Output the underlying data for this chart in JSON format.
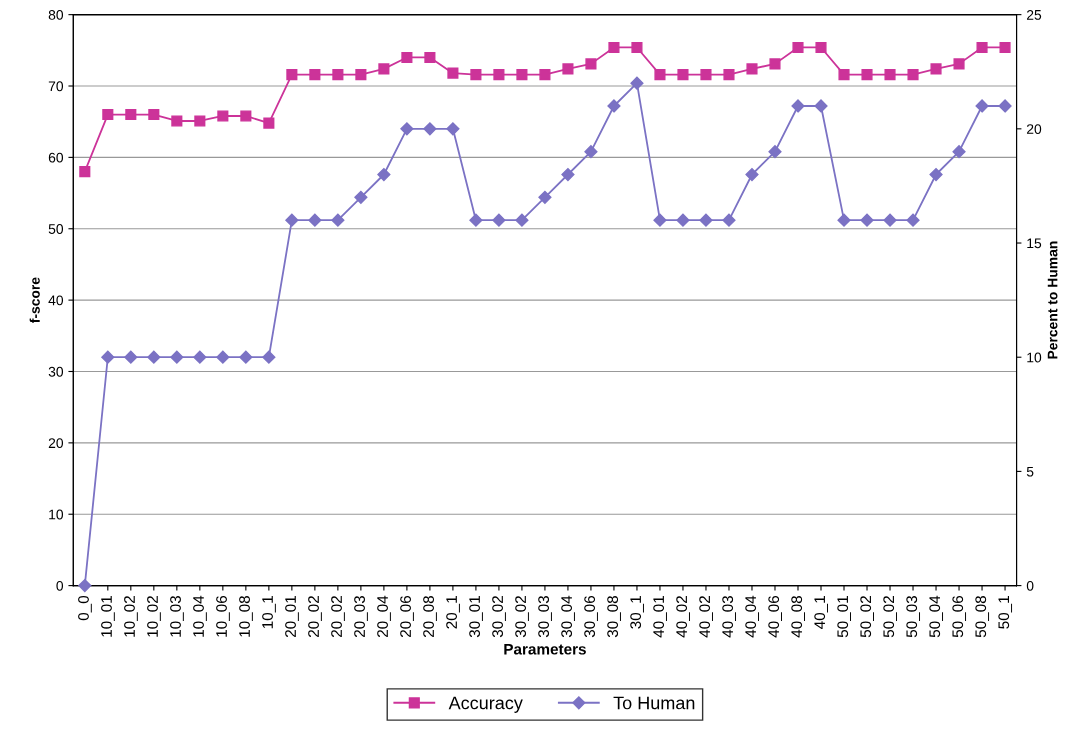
{
  "chart_data": {
    "type": "line",
    "xlabel": "Parameters",
    "ylabel": "f-score",
    "y2label": "Percent to Human",
    "categories": [
      "0_0",
      "10_01",
      "10_02",
      "10_02",
      "10_03",
      "10_04",
      "10_06",
      "10_08",
      "10_1",
      "20_01",
      "20_02",
      "20_02",
      "20_03",
      "20_04",
      "20_06",
      "20_08",
      "20_1",
      "30_01",
      "30_02",
      "30_02",
      "30_03",
      "30_04",
      "30_06",
      "30_08",
      "30_1",
      "40_01",
      "40_02",
      "40_02",
      "40_03",
      "40_04",
      "40_06",
      "40_08",
      "40_1",
      "50_01",
      "50_02",
      "50_02",
      "50_03",
      "50_04",
      "50_06",
      "50_08",
      "50_1"
    ],
    "series": [
      {
        "name": "Accuracy",
        "color": "#cc3399",
        "marker": "square",
        "values": [
          58,
          66,
          66,
          66,
          65.1,
          65.1,
          65.8,
          65.8,
          64.8,
          71.6,
          71.6,
          71.6,
          71.6,
          72.4,
          74,
          74,
          71.8,
          71.6,
          71.6,
          71.6,
          71.6,
          72.4,
          73.1,
          75.4,
          75.4,
          71.6,
          71.6,
          71.6,
          71.6,
          72.4,
          73.1,
          75.4,
          75.4,
          71.6,
          71.6,
          71.6,
          71.6,
          72.4,
          73.1,
          75.4,
          75.4
        ]
      },
      {
        "name": "To Human",
        "color": "#7b72c4",
        "marker": "diamond",
        "axis": "y2",
        "values": [
          0,
          10,
          10,
          10,
          10,
          10,
          10,
          10,
          10,
          16,
          16,
          16,
          17,
          18,
          20,
          20,
          20,
          16,
          16,
          16,
          17,
          18,
          19,
          21,
          22,
          16,
          16,
          16,
          16,
          18,
          19,
          21,
          21,
          16,
          16,
          16,
          16,
          18,
          19,
          21,
          21
        ]
      }
    ],
    "ylim": [
      0,
      80
    ],
    "yticks": [
      0,
      10,
      20,
      30,
      40,
      50,
      60,
      70,
      80
    ],
    "y2lim": [
      0,
      25
    ],
    "y2ticks": [
      0,
      5,
      10,
      15,
      20,
      25
    ],
    "grid": "y",
    "legend": "bottom"
  }
}
